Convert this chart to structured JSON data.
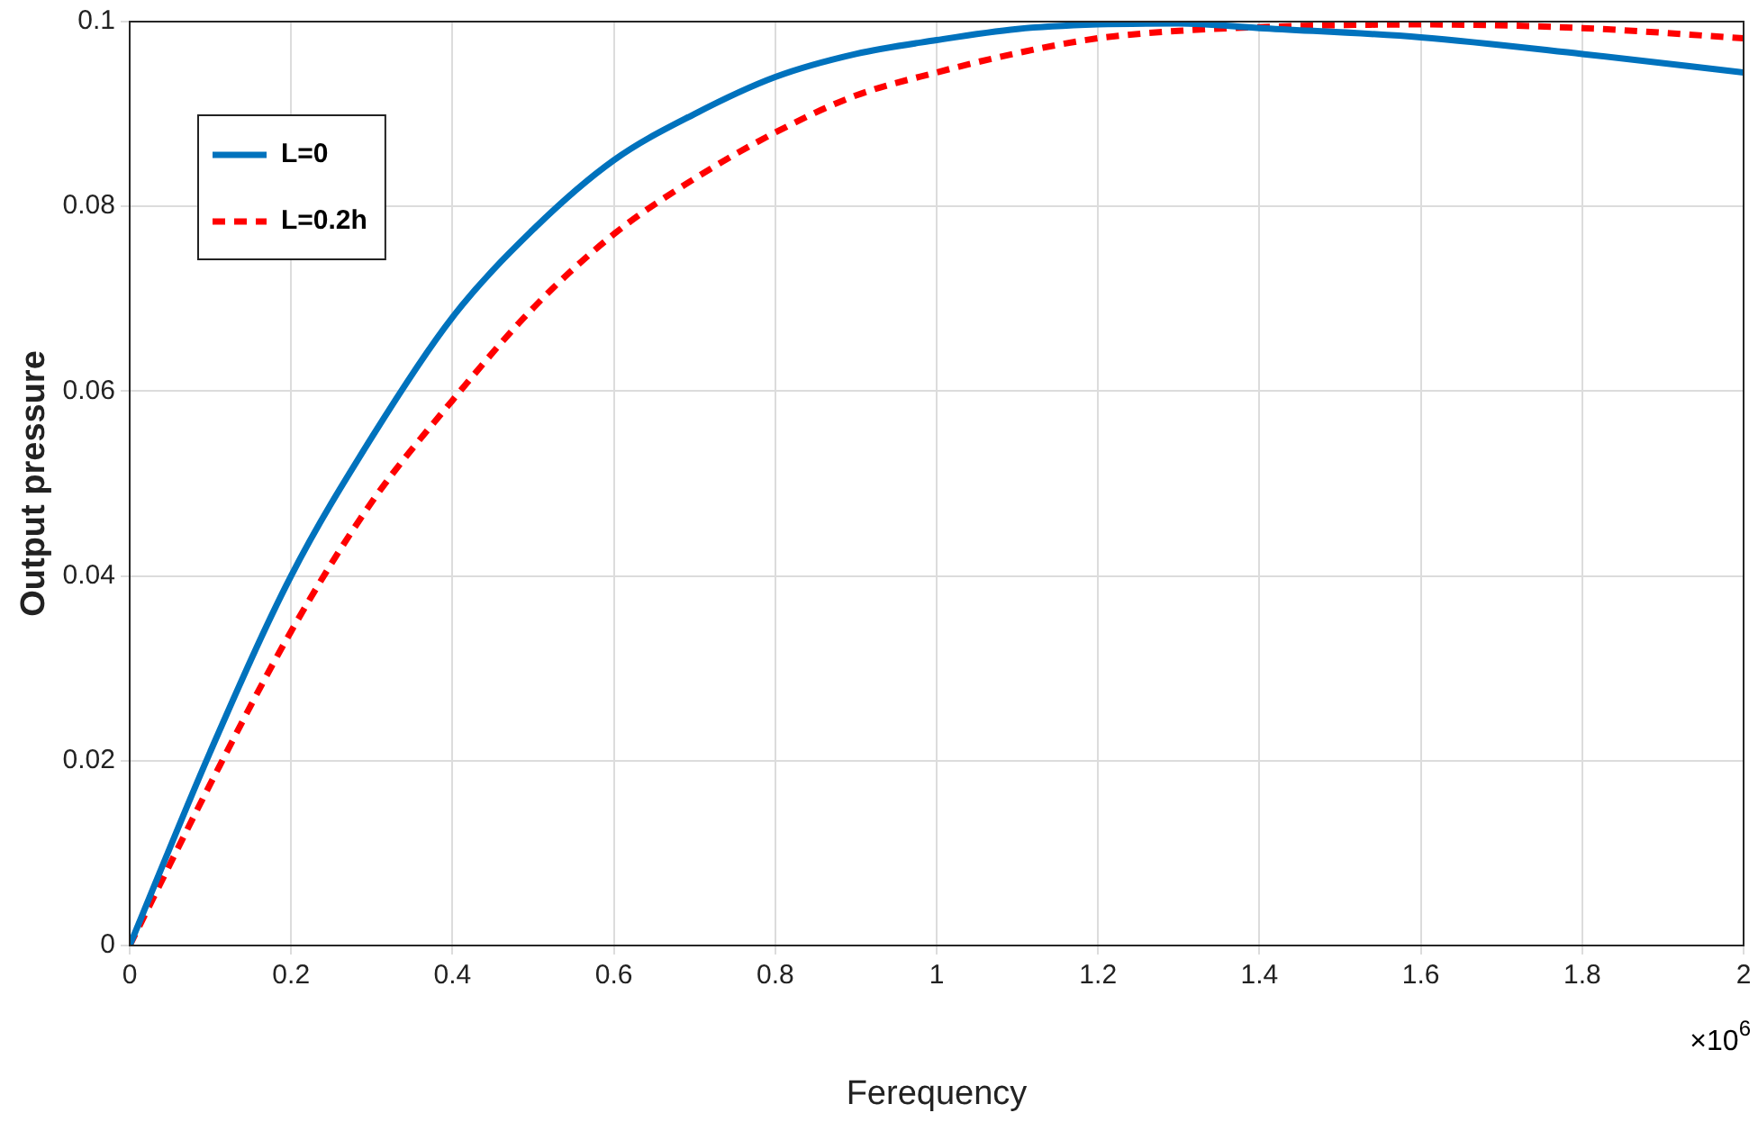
{
  "chart_data": {
    "type": "line",
    "xlabel": "Ferequency",
    "ylabel": "Output pressure",
    "annotations": [
      "×10$^{6}$"
    ],
    "x": [
      0,
      0.1,
      0.2,
      0.3,
      0.4,
      0.5,
      0.6,
      0.7,
      0.8,
      0.9,
      1.0,
      1.1,
      1.2,
      1.3,
      1.4,
      1.6,
      1.8,
      2.0
    ],
    "series": [
      {
        "name": "L=0",
        "color": "#0072bd",
        "line_style": "solid",
        "values": [
          0,
          0.021,
          0.04,
          0.055,
          0.068,
          0.0775,
          0.085,
          0.09,
          0.094,
          0.0965,
          0.098,
          0.0992,
          0.0997,
          0.0998,
          0.0993,
          0.0983,
          0.0965,
          0.0945
        ]
      },
      {
        "name": "L=0.2h",
        "color": "#ff0000",
        "line_style": "dashed",
        "values": [
          0,
          0.0175,
          0.034,
          0.048,
          0.059,
          0.069,
          0.077,
          0.083,
          0.088,
          0.092,
          0.0945,
          0.0966,
          0.0982,
          0.099,
          0.0994,
          0.0997,
          0.0993,
          0.0982
        ]
      }
    ],
    "xlim": [
      0,
      2
    ],
    "xticks": [
      0,
      0.2,
      0.4,
      0.6,
      0.8,
      1,
      1.2,
      1.4,
      1.6,
      1.8,
      2
    ],
    "ylim": [
      0,
      0.1
    ],
    "yticks": [
      0,
      0.02,
      0.04,
      0.06,
      0.08,
      0.1
    ],
    "grid": true,
    "legend": "top left",
    "marker": "none"
  }
}
